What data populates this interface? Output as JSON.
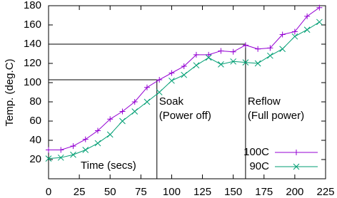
{
  "chart_data": {
    "type": "line",
    "ylabel": "Temp. (deg.C)",
    "xlabel": "Time (secs)",
    "annotations": [
      [
        "Soak",
        "(Power off)"
      ],
      [
        "Reflow",
        "(Full power)"
      ]
    ],
    "reference_points": [
      {
        "x": 88,
        "y": 103
      },
      {
        "x": 160,
        "y": 140
      }
    ],
    "x": [
      0,
      10,
      20,
      30,
      40,
      50,
      60,
      70,
      80,
      90,
      100,
      110,
      120,
      130,
      140,
      150,
      160,
      170,
      180,
      190,
      200,
      210,
      220
    ],
    "series": [
      {
        "name": "100C",
        "color": "#9400d3",
        "marker": "+",
        "values": [
          30,
          30,
          34,
          41,
          50,
          62,
          70,
          80,
          95,
          103,
          110,
          117,
          129,
          129,
          133,
          132,
          139,
          135,
          136,
          150,
          153,
          169,
          178
        ]
      },
      {
        "name": "90C",
        "color": "#009e73",
        "marker": "x",
        "values": [
          21,
          22,
          25,
          30,
          37,
          46,
          60,
          70,
          80,
          90,
          102,
          108,
          118,
          126,
          119,
          122,
          121,
          120,
          128,
          135,
          148,
          155,
          163
        ]
      }
    ],
    "xlim": [
      0,
      225
    ],
    "xticks": [
      0,
      25,
      50,
      75,
      100,
      125,
      150,
      175,
      200,
      225
    ],
    "ylim": [
      0,
      180
    ],
    "yticks": [
      20,
      40,
      60,
      80,
      100,
      120,
      140,
      160,
      180
    ],
    "legend": "bottom-right"
  }
}
